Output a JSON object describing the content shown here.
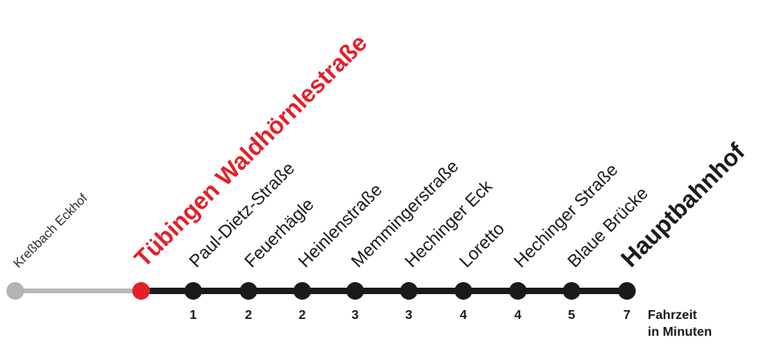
{
  "route": {
    "start_stop": {
      "name": "Kreßbach Eckhof"
    },
    "current_stop": {
      "name": "Tübingen Waldhörnlestraße"
    },
    "stops": [
      {
        "name": "Paul-Dietz-Straße",
        "minutes": "1"
      },
      {
        "name": "Feuerhägle",
        "minutes": "2"
      },
      {
        "name": "Heinlenstraße",
        "minutes": "2"
      },
      {
        "name": "Memmingerstraße",
        "minutes": "3"
      },
      {
        "name": "Hechinger Eck",
        "minutes": "3"
      },
      {
        "name": "Loretto",
        "minutes": "4"
      },
      {
        "name": "Hechinger Straße",
        "minutes": "4"
      },
      {
        "name": "Blaue Brücke",
        "minutes": "5"
      }
    ],
    "terminus": {
      "name": "Hauptbahnhof",
      "minutes": "7"
    }
  },
  "legend": {
    "line1": "Fahrzeit",
    "line2": "in Minuten"
  },
  "colors": {
    "past_line": "#b8b8bc",
    "past_dot": "#b3b3b6",
    "line": "#1a1a1a",
    "current": "#e3202a"
  }
}
